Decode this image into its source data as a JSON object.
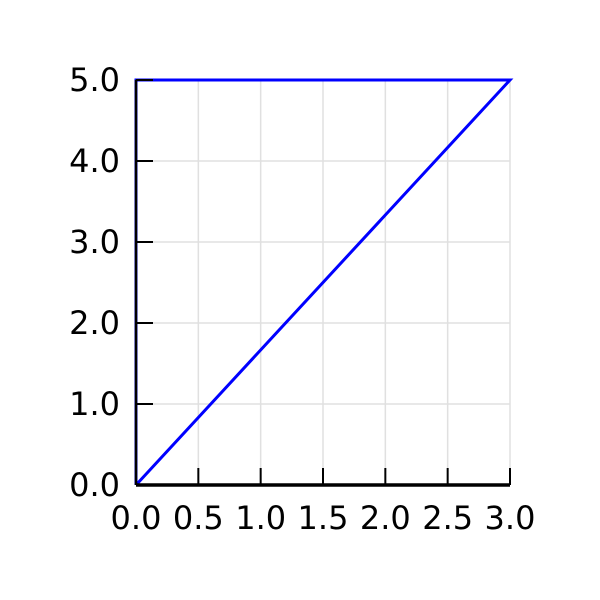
{
  "chart_data": {
    "type": "line",
    "title": "",
    "xlabel": "",
    "ylabel": "",
    "xlim": [
      0.0,
      3.0
    ],
    "ylim": [
      0.0,
      5.0
    ],
    "grid": true,
    "x_ticks": [
      0.0,
      0.5,
      1.0,
      1.5,
      2.0,
      2.5,
      3.0
    ],
    "x_tick_labels": [
      "0.0",
      "0.5",
      "1.0",
      "1.5",
      "2.0",
      "2.5",
      "3.0"
    ],
    "y_ticks": [
      0.0,
      1.0,
      2.0,
      3.0,
      4.0,
      5.0
    ],
    "y_tick_labels": [
      "0.0",
      "1.0",
      "2.0",
      "3.0",
      "4.0",
      "5.0"
    ],
    "series": [
      {
        "color": "#0000ff",
        "x": [
          0.0,
          3.0,
          0.0,
          0.0
        ],
        "y": [
          0.0,
          5.0,
          5.0,
          0.0
        ]
      }
    ],
    "colors": {
      "axis": "#000000",
      "grid": "#e0e0e0",
      "series": "#0000ff"
    }
  }
}
